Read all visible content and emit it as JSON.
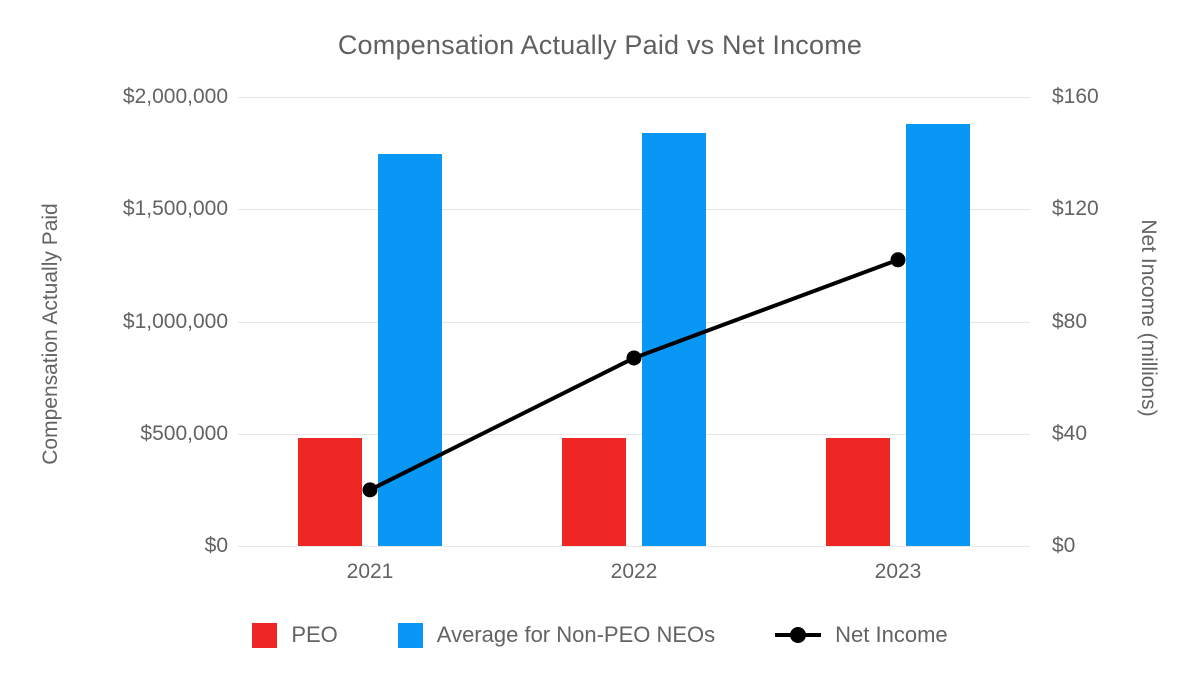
{
  "title": "Compensation Actually Paid vs Net Income",
  "left_axis": {
    "title": "Compensation Actually Paid",
    "ticks": [
      "$2,000,000",
      "$1,500,000",
      "$1,000,000",
      "$500,000",
      "$0"
    ]
  },
  "right_axis": {
    "title": "Net Income (millions)",
    "ticks": [
      "$160",
      "$120",
      "$80",
      "$40",
      "$0"
    ]
  },
  "x_axis": {
    "labels": [
      "2021",
      "2022",
      "2023"
    ]
  },
  "legend": {
    "items": [
      {
        "label": "PEO",
        "marker": "square",
        "color": "#ee2624"
      },
      {
        "label": "Average for Non-PEO NEOs",
        "marker": "square",
        "color": "#0897f4"
      },
      {
        "label": "Net Income",
        "marker": "line-dot",
        "color": "#000000"
      }
    ]
  },
  "colors": {
    "peo_red": "#ee2624",
    "neo_blue": "#0897f4",
    "net_income_black": "#000000",
    "gridline": "#e7e7e7",
    "text_gray": "#636363"
  },
  "chart_data": {
    "type": "bar",
    "subtype": "combo-bar-line-dual-axis",
    "title": "Compensation Actually Paid vs Net Income",
    "categories": [
      "2021",
      "2022",
      "2023"
    ],
    "series": [
      {
        "name": "PEO",
        "type": "bar",
        "axis": "left",
        "color": "#ee2624",
        "values": [
          480000,
          480000,
          480000
        ]
      },
      {
        "name": "Average for Non-PEO NEOs",
        "type": "bar",
        "axis": "left",
        "color": "#0897f4",
        "values": [
          1745000,
          1840000,
          1880000
        ]
      },
      {
        "name": "Net Income",
        "type": "line",
        "axis": "right",
        "color": "#000000",
        "values": [
          20,
          67,
          102
        ]
      }
    ],
    "left_ylabel": "Compensation Actually Paid",
    "right_ylabel": "Net Income (millions)",
    "left_ylim": [
      0,
      2000000
    ],
    "right_ylim": [
      0,
      160
    ],
    "left_tick_step": 500000,
    "right_tick_step": 40,
    "grid": true,
    "legend_position": "bottom"
  }
}
